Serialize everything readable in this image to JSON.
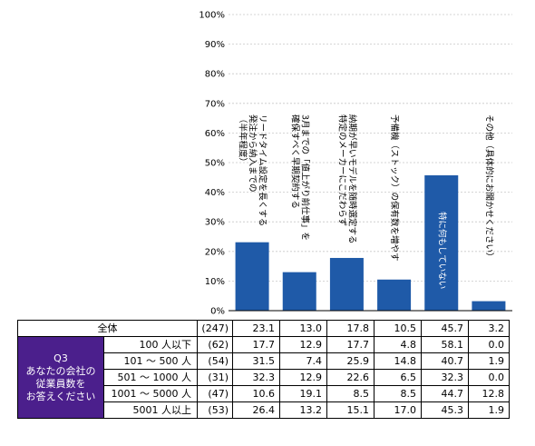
{
  "chart_data": {
    "type": "bar",
    "categories": [
      "発注から納入までのリードタイム設定を長くする（半年程度）",
      "3月までの「値上がり前仕事」を確保すべく早期契約する",
      "特定のメーカーにこだわらず納期が早いモデルを随時選定する",
      "予備機（ストック）の保有数を増やす",
      "特に何もしていない",
      "その他（具体的にお聞かせください）"
    ],
    "bar_label_lines": [
      [
        "リードタイム設定を長くする",
        "発注から納入までの",
        "（半年程度）"
      ],
      [
        "3月までの「値上がり前仕事」を",
        "確保すべく早期契約する"
      ],
      [
        "納期が早いモデルを随時選定する",
        "特定のメーカーにこだわらず"
      ],
      [
        "予備機（ストック）の保有数を増やす"
      ],
      [
        "特に何もしていない"
      ],
      [
        "その他（具体的にお聞かせください）"
      ]
    ],
    "values": [
      23.1,
      13.0,
      17.8,
      10.5,
      45.7,
      3.2
    ],
    "ylim": [
      0,
      100
    ],
    "yticks": [
      "0%",
      "10%",
      "20%",
      "30%",
      "40%",
      "50%",
      "60%",
      "70%",
      "80%",
      "90%",
      "100%"
    ],
    "colors": {
      "bar": "#1f5aa8",
      "bar_label_inside": "#ffffff"
    }
  },
  "table": {
    "question_label_lines": [
      "Q3",
      "あなたの会社の",
      "従業員数を",
      "お答えください"
    ],
    "question_bg": "#4b1f8c",
    "total": {
      "label": "全体",
      "n": "(247)",
      "values": [
        "23.1",
        "13.0",
        "17.8",
        "10.5",
        "45.7",
        "3.2"
      ]
    },
    "rows": [
      {
        "label": "100 人以下",
        "n": "(62)",
        "values": [
          "17.7",
          "12.9",
          "17.7",
          "4.8",
          "58.1",
          "0.0"
        ]
      },
      {
        "label": "101 ～ 500 人",
        "n": "(54)",
        "values": [
          "31.5",
          "7.4",
          "25.9",
          "14.8",
          "40.7",
          "1.9"
        ]
      },
      {
        "label": "501 ～ 1000 人",
        "n": "(31)",
        "values": [
          "32.3",
          "12.9",
          "22.6",
          "6.5",
          "32.3",
          "0.0"
        ]
      },
      {
        "label": "1001 ～ 5000 人",
        "n": "(47)",
        "values": [
          "10.6",
          "19.1",
          "8.5",
          "8.5",
          "44.7",
          "12.8"
        ]
      },
      {
        "label": "5001 人以上",
        "n": "(53)",
        "values": [
          "26.4",
          "13.2",
          "15.1",
          "17.0",
          "45.3",
          "1.9"
        ]
      }
    ]
  }
}
